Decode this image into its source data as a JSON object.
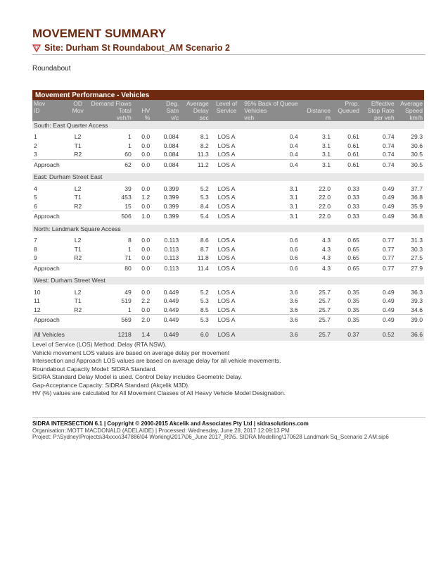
{
  "title": "MOVEMENT SUMMARY",
  "site": "Site: Durham St Roundabout_AM Scenario 2",
  "site_type": "Roundabout",
  "table": {
    "title": "Movement Performance - Vehicles",
    "headers": [
      [
        "Mov",
        "OD",
        "Demand Flows",
        "",
        "Deg.",
        "Average",
        "Level of",
        "95% Back of Queue",
        "",
        "Prop.",
        "Effective",
        "Average"
      ],
      [
        "ID",
        "Mov",
        "Total",
        "HV",
        "Satn",
        "Delay",
        "Service",
        "Vehicles",
        "Distance",
        "Queued",
        "Stop Rate",
        "Speed"
      ],
      [
        "",
        "",
        "veh/h",
        "%",
        "v/c",
        "sec",
        "",
        "veh",
        "m",
        "",
        "per veh",
        "km/h"
      ]
    ],
    "sections": [
      {
        "name": "South: East Quarter Access",
        "rows": [
          [
            "1",
            "L2",
            "1",
            "0.0",
            "0.084",
            "8.1",
            "LOS A",
            "0.4",
            "3.1",
            "0.61",
            "0.74",
            "29.3"
          ],
          [
            "2",
            "T1",
            "1",
            "0.0",
            "0.084",
            "8.2",
            "LOS A",
            "0.4",
            "3.1",
            "0.61",
            "0.74",
            "30.6"
          ],
          [
            "3",
            "R2",
            "60",
            "0.0",
            "0.084",
            "11.3",
            "LOS A",
            "0.4",
            "3.1",
            "0.61",
            "0.74",
            "30.5"
          ]
        ],
        "approach": [
          "Approach",
          "",
          "62",
          "0.0",
          "0.084",
          "11.2",
          "LOS A",
          "0.4",
          "3.1",
          "0.61",
          "0.74",
          "30.5"
        ]
      },
      {
        "name": "East: Durham Street East",
        "rows": [
          [
            "4",
            "L2",
            "39",
            "0.0",
            "0.399",
            "5.2",
            "LOS A",
            "3.1",
            "22.0",
            "0.33",
            "0.49",
            "37.7"
          ],
          [
            "5",
            "T1",
            "453",
            "1.2",
            "0.399",
            "5.3",
            "LOS A",
            "3.1",
            "22.0",
            "0.33",
            "0.49",
            "36.8"
          ],
          [
            "6",
            "R2",
            "15",
            "0.0",
            "0.399",
            "8.4",
            "LOS A",
            "3.1",
            "22.0",
            "0.33",
            "0.49",
            "35.9"
          ]
        ],
        "approach": [
          "Approach",
          "",
          "506",
          "1.0",
          "0.399",
          "5.4",
          "LOS A",
          "3.1",
          "22.0",
          "0.33",
          "0.49",
          "36.8"
        ]
      },
      {
        "name": "North: Landmark Square Access",
        "rows": [
          [
            "7",
            "L2",
            "8",
            "0.0",
            "0.113",
            "8.6",
            "LOS A",
            "0.6",
            "4.3",
            "0.65",
            "0.77",
            "31.3"
          ],
          [
            "8",
            "T1",
            "1",
            "0.0",
            "0.113",
            "8.7",
            "LOS A",
            "0.6",
            "4.3",
            "0.65",
            "0.77",
            "30.3"
          ],
          [
            "9",
            "R2",
            "71",
            "0.0",
            "0.113",
            "11.8",
            "LOS A",
            "0.6",
            "4.3",
            "0.65",
            "0.77",
            "27.5"
          ]
        ],
        "approach": [
          "Approach",
          "",
          "80",
          "0.0",
          "0.113",
          "11.4",
          "LOS A",
          "0.6",
          "4.3",
          "0.65",
          "0.77",
          "27.9"
        ]
      },
      {
        "name": "West: Durham Street West",
        "rows": [
          [
            "10",
            "L2",
            "49",
            "0.0",
            "0.449",
            "5.2",
            "LOS A",
            "3.6",
            "25.7",
            "0.35",
            "0.49",
            "36.3"
          ],
          [
            "11",
            "T1",
            "519",
            "2.2",
            "0.449",
            "5.3",
            "LOS A",
            "3.6",
            "25.7",
            "0.35",
            "0.49",
            "39.3"
          ],
          [
            "12",
            "R2",
            "1",
            "0.0",
            "0.449",
            "8.5",
            "LOS A",
            "3.6",
            "25.7",
            "0.35",
            "0.49",
            "34.6"
          ]
        ],
        "approach": [
          "Approach",
          "",
          "569",
          "2.0",
          "0.449",
          "5.3",
          "LOS A",
          "3.6",
          "25.7",
          "0.35",
          "0.49",
          "39.0"
        ]
      }
    ],
    "all": [
      "All Vehicles",
      "",
      "1218",
      "1.4",
      "0.449",
      "6.0",
      "LOS A",
      "3.6",
      "25.7",
      "0.37",
      "0.52",
      "36.6"
    ]
  },
  "notes": [
    "Level of Service (LOS) Method: Delay (RTA NSW).",
    "Vehicle movement LOS values are based on average delay per movement",
    "Intersection and Approach LOS values are based on average delay for all vehicle movements.",
    "Roundabout Capacity Model: SIDRA Standard.",
    "SIDRA Standard Delay Model is used. Control Delay includes Geometric Delay.",
    "Gap-Acceptance Capacity: SIDRA Standard (Akçelik M3D).",
    "HV (%) values are calculated for All Movement Classes of All Heavy Vehicle Model Designation."
  ],
  "footer": {
    "line1": "SIDRA INTERSECTION 6.1  |  Copyright © 2000-2015 Akcelik and Associates Pty Ltd  |  sidrasolutions.com",
    "line2": "Organisation: MOTT MACDONALD (ADELAIDE)  |  Processed: Wednesday, June 28, 2017 12:09:13 PM",
    "line3": "Project:  P:\\Sydney\\Projects\\34xxxx\\347886\\04 Working\\2017\\06_June 2017_R9\\5. SIDRA Modelling\\170628 Landmark Sq_Scenario 2 AM.sip6"
  },
  "colors": {
    "brand": "#6e2a10",
    "header_grey": "#8c8c8c",
    "section_grey": "#e8e8e8"
  }
}
